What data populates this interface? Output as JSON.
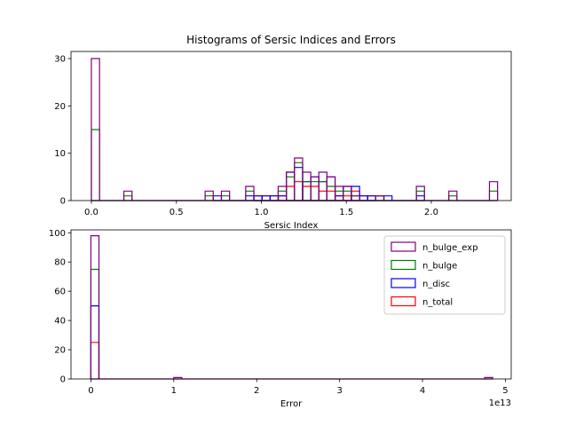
{
  "chart_data": [
    {
      "type": "histogram",
      "title": "Histograms of Sersic Indices and Errors",
      "xlabel": "Sersic Index",
      "ylabel": "",
      "xlim": [
        -0.12,
        2.47
      ],
      "ylim": [
        0,
        31.5
      ],
      "xticks": [
        0.0,
        0.5,
        1.0,
        1.5,
        2.0
      ],
      "yticks": [
        0,
        10,
        20,
        30
      ],
      "bin_width": 0.0478,
      "series": [
        {
          "name": "n_bulge_exp",
          "color": "#800080",
          "bins": [
            [
              0.0,
              30
            ],
            [
              0.191,
              2
            ],
            [
              0.669,
              2
            ],
            [
              0.765,
              2
            ],
            [
              0.908,
              3
            ],
            [
              1.099,
              3
            ],
            [
              1.147,
              6
            ],
            [
              1.195,
              9
            ],
            [
              1.243,
              6
            ],
            [
              1.291,
              5
            ],
            [
              1.338,
              6
            ],
            [
              1.386,
              5
            ],
            [
              1.434,
              3
            ],
            [
              1.482,
              3
            ],
            [
              1.53,
              1
            ],
            [
              1.673,
              1
            ],
            [
              1.912,
              3
            ],
            [
              2.103,
              2
            ],
            [
              2.342,
              4
            ]
          ]
        },
        {
          "name": "n_bulge",
          "color": "#008000",
          "bins": [
            [
              0.0,
              15
            ],
            [
              0.191,
              1
            ],
            [
              0.669,
              1
            ],
            [
              0.765,
              1
            ],
            [
              0.908,
              2
            ],
            [
              1.099,
              2
            ],
            [
              1.147,
              5
            ],
            [
              1.195,
              8
            ],
            [
              1.243,
              4
            ],
            [
              1.291,
              4
            ],
            [
              1.338,
              4
            ],
            [
              1.386,
              3
            ],
            [
              1.434,
              2
            ],
            [
              1.482,
              2
            ],
            [
              1.53,
              1
            ],
            [
              1.673,
              1
            ],
            [
              1.912,
              2
            ],
            [
              2.103,
              1
            ],
            [
              2.342,
              2
            ]
          ]
        },
        {
          "name": "n_disc",
          "color": "#0000ff",
          "bins": [
            [
              0.717,
              1
            ],
            [
              0.908,
              1
            ],
            [
              0.956,
              1
            ],
            [
              1.004,
              1
            ],
            [
              1.052,
              1
            ],
            [
              1.099,
              1
            ],
            [
              1.147,
              6
            ],
            [
              1.195,
              7
            ],
            [
              1.243,
              4
            ],
            [
              1.291,
              5
            ],
            [
              1.338,
              4
            ],
            [
              1.386,
              5
            ],
            [
              1.434,
              1
            ],
            [
              1.482,
              3
            ],
            [
              1.53,
              3
            ],
            [
              1.578,
              1
            ],
            [
              1.625,
              1
            ],
            [
              1.673,
              1
            ],
            [
              1.721,
              1
            ],
            [
              1.912,
              1
            ]
          ]
        },
        {
          "name": "n_total",
          "color": "#ff0000",
          "bins": [
            [
              0.956,
              1
            ],
            [
              1.004,
              1
            ],
            [
              1.052,
              1
            ],
            [
              1.099,
              1
            ],
            [
              1.147,
              3
            ],
            [
              1.195,
              4
            ],
            [
              1.243,
              3
            ],
            [
              1.291,
              3
            ],
            [
              1.338,
              2
            ],
            [
              1.386,
              2
            ],
            [
              1.434,
              1
            ],
            [
              1.482,
              1
            ],
            [
              1.53,
              2
            ],
            [
              1.578,
              1
            ],
            [
              1.625,
              1
            ]
          ]
        }
      ]
    },
    {
      "type": "histogram",
      "title": "",
      "xlabel": "Error",
      "ylabel": "",
      "offset_text": "1e13",
      "xlim": [
        -2400000000000.0,
        50700000000000.0
      ],
      "ylim": [
        0,
        102
      ],
      "xticks": [
        0,
        1,
        2,
        3,
        4,
        5
      ],
      "yticks": [
        0,
        20,
        40,
        60,
        80,
        100
      ],
      "bin_width": 970000000000.0,
      "legend_position": "upper-right",
      "legend": [
        "n_bulge_exp",
        "n_bulge",
        "n_disc",
        "n_total"
      ],
      "series": [
        {
          "name": "n_bulge_exp",
          "color": "#800080",
          "bins": [
            [
              0.0,
              98
            ],
            [
              10000000000000.0,
              1
            ],
            [
              47500000000000.0,
              1
            ]
          ]
        },
        {
          "name": "n_bulge",
          "color": "#008000",
          "bins": [
            [
              0.0,
              75
            ]
          ]
        },
        {
          "name": "n_disc",
          "color": "#0000ff",
          "bins": [
            [
              0.0,
              50
            ]
          ]
        },
        {
          "name": "n_total",
          "color": "#ff0000",
          "bins": [
            [
              0.0,
              25
            ]
          ]
        }
      ]
    }
  ]
}
